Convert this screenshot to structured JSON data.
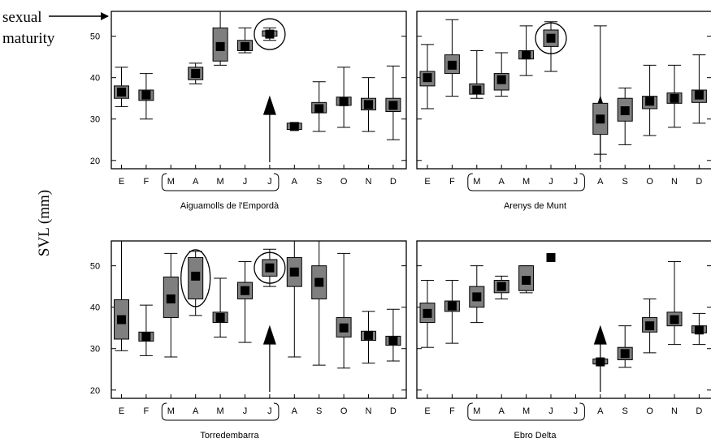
{
  "figure": {
    "ylabel": "SVL (mm)",
    "annotation_line1": "sexual",
    "annotation_line2": "maturity"
  },
  "colors": {
    "box_fill": "#7f7f7f",
    "median_marker": "#000000",
    "axes": "#000000"
  },
  "chart_data": [
    {
      "type": "boxplot",
      "title": "Aiguamolls de l'Empordà",
      "categories": [
        "E",
        "F",
        "M",
        "A",
        "M",
        "J",
        "J",
        "A",
        "S",
        "O",
        "N",
        "D"
      ],
      "ylim": [
        18,
        56
      ],
      "yticks": [
        20,
        30,
        40,
        50
      ],
      "boxes": [
        {
          "min": 33,
          "q1": 35,
          "median": 36.5,
          "q3": 38,
          "max": 42.5
        },
        {
          "min": 30,
          "q1": 34.5,
          "median": 35.8,
          "q3": 37,
          "max": 41
        },
        null,
        {
          "min": 38.5,
          "q1": 39.5,
          "median": 41,
          "q3": 42.5,
          "max": 43.5
        },
        {
          "min": 43,
          "q1": 44,
          "median": 47.5,
          "q3": 52,
          "max": 56
        },
        {
          "min": 46,
          "q1": 46.5,
          "median": 47.5,
          "q3": 49,
          "max": 52
        },
        {
          "min": 49,
          "q1": 50,
          "median": 50.5,
          "q3": 51.3,
          "max": 52
        },
        {
          "min": 27.5,
          "q1": 27.5,
          "median": 28.2,
          "q3": 29,
          "max": 29
        },
        {
          "min": 27,
          "q1": 31.5,
          "median": 32.5,
          "q3": 34,
          "max": 39
        },
        {
          "min": 28,
          "q1": 33.3,
          "median": 34.2,
          "q3": 35.3,
          "max": 42.5
        },
        {
          "min": 27,
          "q1": 32.2,
          "median": 33.5,
          "q3": 35,
          "max": 40
        },
        {
          "min": 25,
          "q1": 31.8,
          "median": 33.3,
          "q3": 35,
          "max": 42.8
        }
      ],
      "circled": [
        6
      ],
      "bracket": {
        "from": 2,
        "to": 6
      },
      "arrow_at": 6
    },
    {
      "type": "boxplot",
      "title": "Arenys de Munt",
      "categories": [
        "E",
        "F",
        "M",
        "A",
        "M",
        "J",
        "J",
        "A",
        "S",
        "O",
        "N",
        "D"
      ],
      "ylim": [
        18,
        56
      ],
      "yticks": [
        20,
        30,
        40,
        50
      ],
      "boxes": [
        {
          "min": 32.5,
          "q1": 38,
          "median": 40,
          "q3": 41.5,
          "max": 48
        },
        {
          "min": 35.5,
          "q1": 41,
          "median": 43,
          "q3": 45.5,
          "max": 54
        },
        {
          "min": 35,
          "q1": 36,
          "median": 37,
          "q3": 38.5,
          "max": 46.5
        },
        {
          "min": 35.5,
          "q1": 37,
          "median": 39.5,
          "q3": 41,
          "max": 46
        },
        {
          "min": 40.5,
          "q1": 44.5,
          "median": 45.5,
          "q3": 46.5,
          "max": 52.5
        },
        {
          "min": 41.5,
          "q1": 47.5,
          "median": 49.5,
          "q3": 51.5,
          "max": 53.5
        },
        null,
        {
          "min": 21.5,
          "q1": 26.3,
          "median": 30,
          "q3": 33.8,
          "max": 52.5
        },
        {
          "min": 23.8,
          "q1": 29.5,
          "median": 32,
          "q3": 35,
          "max": 37.5
        },
        {
          "min": 26,
          "q1": 32.5,
          "median": 34.3,
          "q3": 35.5,
          "max": 43
        },
        {
          "min": 28,
          "q1": 33.8,
          "median": 35,
          "q3": 36.3,
          "max": 43
        },
        {
          "min": 29,
          "q1": 34,
          "median": 35.8,
          "q3": 37,
          "max": 45.5
        }
      ],
      "circled": [
        5
      ],
      "bracket": {
        "from": 2,
        "to": 6
      },
      "arrow_at": 7
    },
    {
      "type": "boxplot",
      "title": "Torredembarra",
      "categories": [
        "E",
        "F",
        "M",
        "A",
        "M",
        "J",
        "J",
        "A",
        "S",
        "O",
        "N",
        "D"
      ],
      "ylim": [
        18,
        56
      ],
      "yticks": [
        20,
        30,
        40,
        50
      ],
      "boxes": [
        {
          "min": 29.5,
          "q1": 32.3,
          "median": 37,
          "q3": 41.8,
          "max": 56
        },
        {
          "min": 28.3,
          "q1": 31.8,
          "median": 32.8,
          "q3": 34,
          "max": 40.5
        },
        {
          "min": 28,
          "q1": 37.5,
          "median": 42,
          "q3": 47.3,
          "max": 53
        },
        {
          "min": 38,
          "q1": 42,
          "median": 47.5,
          "q3": 52,
          "max": 53.5
        },
        {
          "min": 32.8,
          "q1": 36.3,
          "median": 37.5,
          "q3": 38.8,
          "max": 47
        },
        {
          "min": 31.5,
          "q1": 42,
          "median": 44,
          "q3": 46,
          "max": 51
        },
        {
          "min": 45,
          "q1": 47.5,
          "median": 49.5,
          "q3": 51.5,
          "max": 54
        },
        {
          "min": 28,
          "q1": 45,
          "median": 48.5,
          "q3": 52,
          "max": 56
        },
        {
          "min": 26,
          "q1": 42,
          "median": 46,
          "q3": 50,
          "max": 56
        },
        {
          "min": 25.3,
          "q1": 32.8,
          "median": 35,
          "q3": 37.5,
          "max": 53
        },
        {
          "min": 26.5,
          "q1": 32,
          "median": 33.2,
          "q3": 34.2,
          "max": 39
        },
        {
          "min": 27,
          "q1": 30.8,
          "median": 32,
          "q3": 33,
          "max": 39.5
        }
      ],
      "circled": [
        3,
        6
      ],
      "bracket": {
        "from": 2,
        "to": 6
      },
      "arrow_at": 6
    },
    {
      "type": "boxplot",
      "title": "Ebro Delta",
      "categories": [
        "E",
        "F",
        "M",
        "A",
        "M",
        "J",
        "J",
        "A",
        "S",
        "O",
        "N",
        "D"
      ],
      "ylim": [
        18,
        56
      ],
      "yticks": [
        20,
        30,
        40,
        50
      ],
      "boxes": [
        {
          "min": 30.3,
          "q1": 36.3,
          "median": 38.5,
          "q3": 41,
          "max": 46.5
        },
        {
          "min": 31.3,
          "q1": 39,
          "median": 40.3,
          "q3": 41.5,
          "max": 46.5
        },
        {
          "min": 36.3,
          "q1": 40,
          "median": 42.5,
          "q3": 45,
          "max": 50
        },
        {
          "min": 42,
          "q1": 43.5,
          "median": 45,
          "q3": 46.5,
          "max": 47.5
        },
        {
          "min": 43.5,
          "q1": 44,
          "median": 46.5,
          "q3": 50,
          "max": 50
        },
        {
          "min": 52,
          "q1": 52,
          "median": 52,
          "q3": 52,
          "max": 52
        },
        null,
        {
          "min": 26.3,
          "q1": 26.3,
          "median": 26.8,
          "q3": 27.5,
          "max": 27.5
        },
        {
          "min": 25.5,
          "q1": 27.3,
          "median": 28.8,
          "q3": 30.3,
          "max": 35.5
        },
        {
          "min": 29,
          "q1": 34,
          "median": 35.5,
          "q3": 37.5,
          "max": 42
        },
        {
          "min": 31,
          "q1": 35.5,
          "median": 37,
          "q3": 38.8,
          "max": 51
        },
        {
          "min": 31,
          "q1": 33.8,
          "median": 34.5,
          "q3": 35.5,
          "max": 38.5
        }
      ],
      "circled": [],
      "bracket": {
        "from": 2,
        "to": 6
      },
      "arrow_at": 7
    }
  ]
}
